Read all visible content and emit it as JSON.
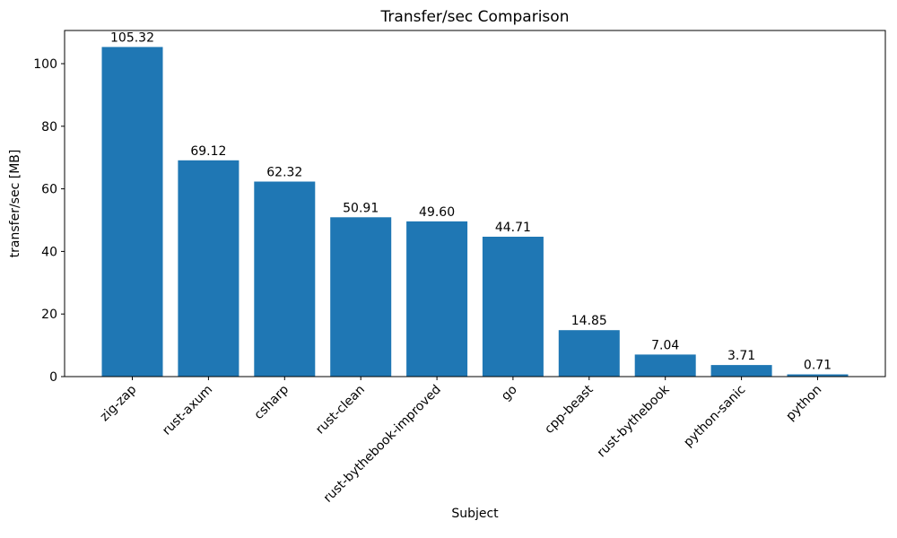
{
  "chart_data": {
    "type": "bar",
    "title": "Transfer/sec Comparison",
    "xlabel": "Subject",
    "ylabel": "transfer/sec [MB]",
    "categories": [
      "zig-zap",
      "rust-axum",
      "csharp",
      "rust-clean",
      "rust-bythebook-improved",
      "go",
      "cpp-beast",
      "rust-bythebook",
      "python-sanic",
      "python"
    ],
    "values": [
      105.32,
      69.12,
      62.32,
      50.91,
      49.6,
      44.71,
      14.85,
      7.04,
      3.71,
      0.71
    ],
    "value_labels": [
      "105.32",
      "69.12",
      "62.32",
      "50.91",
      "49.60",
      "44.71",
      "14.85",
      "7.04",
      "3.71",
      "0.71"
    ],
    "yticks": [
      0,
      20,
      40,
      60,
      80,
      100
    ],
    "ylim": [
      0,
      110.6
    ],
    "bar_color": "#1f77b4",
    "axis_color": "#000000",
    "text_color": "#000000",
    "grid": false,
    "legend": null,
    "x_tick_rotation_deg": 45
  }
}
